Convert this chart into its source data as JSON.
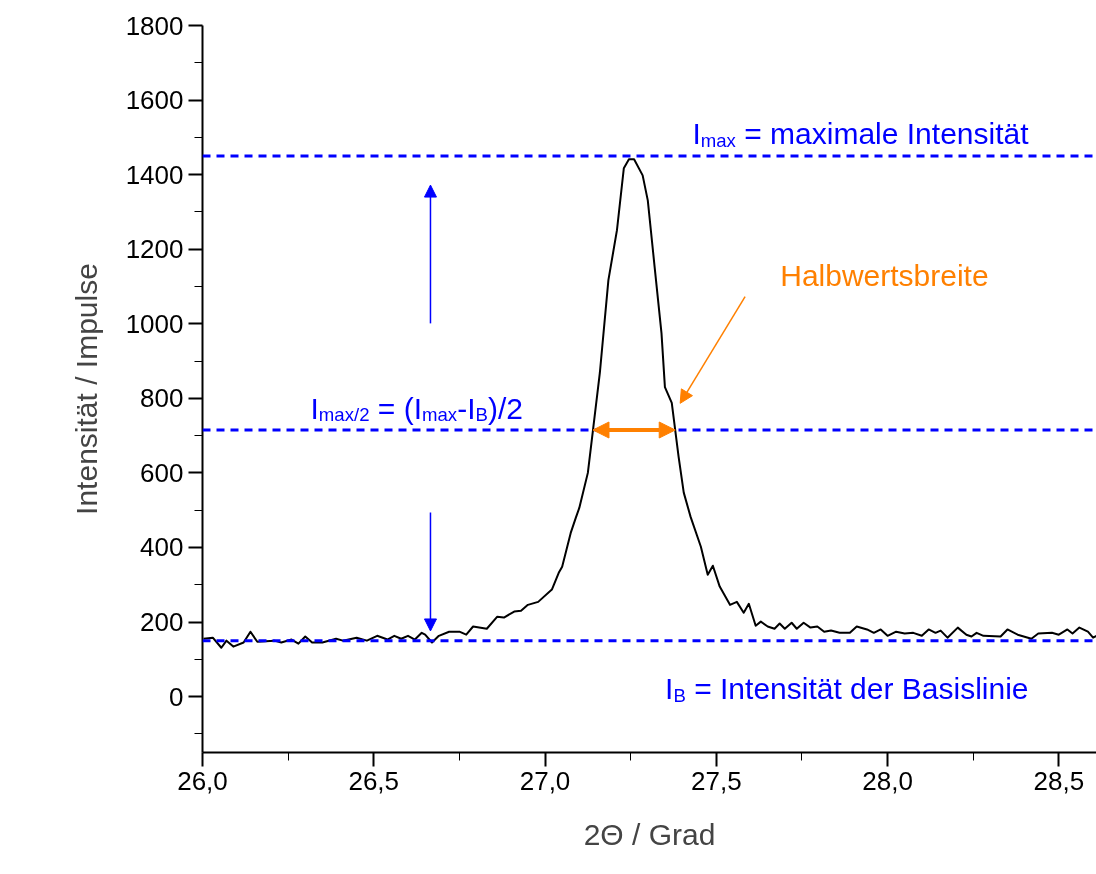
{
  "chart_data": {
    "type": "line",
    "xlabel": "2Θ / Grad",
    "ylabel": "Intensität / Impulse",
    "x": [
      26.003,
      26.03,
      26.055,
      26.07,
      26.09,
      26.12,
      26.14,
      26.16,
      26.21,
      26.23,
      26.26,
      26.28,
      26.3,
      26.32,
      26.35,
      26.39,
      26.41,
      26.45,
      26.48,
      26.51,
      26.54,
      26.56,
      26.58,
      26.6,
      26.62,
      26.64,
      26.65,
      26.67,
      26.69,
      26.72,
      26.75,
      26.77,
      26.79,
      26.83,
      26.86,
      26.88,
      26.91,
      26.93,
      26.95,
      26.98,
      27.02,
      27.04,
      27.05,
      27.075,
      27.09,
      27.1,
      27.125,
      27.14,
      27.16,
      27.185,
      27.21,
      27.23,
      27.245,
      27.26,
      27.285,
      27.3,
      27.32,
      27.34,
      27.35,
      27.37,
      27.39,
      27.405,
      27.425,
      27.455,
      27.475,
      27.49,
      27.51,
      27.54,
      27.56,
      27.58,
      27.595,
      27.615,
      27.63,
      27.65,
      27.67,
      27.685,
      27.7,
      27.72,
      27.735,
      27.755,
      27.775,
      27.795,
      27.815,
      27.835,
      27.86,
      27.89,
      27.91,
      27.94,
      27.96,
      27.98,
      28.0,
      28.025,
      28.05,
      28.075,
      28.1,
      28.12,
      28.14,
      28.155,
      28.175,
      28.205,
      28.23,
      28.245,
      28.26,
      28.28,
      28.33,
      28.35,
      28.38,
      28.42,
      28.44,
      28.48,
      28.5,
      28.525,
      28.54,
      28.56,
      28.585,
      28.6,
      28.61
    ],
    "series": [
      {
        "color": "#000000",
        "values": [
          155,
          158,
          131,
          150,
          134,
          145,
          174,
          147,
          150,
          145,
          153,
          142,
          161,
          145,
          145,
          155,
          150,
          158,
          150,
          163,
          153,
          163,
          155,
          163,
          153,
          171,
          166,
          145,
          163,
          174,
          174,
          166,
          188,
          182,
          214,
          212,
          228,
          230,
          246,
          254,
          287,
          332,
          348,
          439,
          480,
          506,
          600,
          715,
          868,
          1117,
          1251,
          1417,
          1441,
          1441,
          1398,
          1331,
          1152,
          975,
          830,
          788,
          643,
          547,
          482,
          402,
          327,
          351,
          295,
          246,
          254,
          225,
          249,
          190,
          201,
          188,
          182,
          196,
          182,
          198,
          182,
          198,
          185,
          188,
          174,
          177,
          171,
          171,
          188,
          180,
          171,
          180,
          163,
          174,
          169,
          171,
          163,
          180,
          171,
          177,
          158,
          185,
          166,
          161,
          171,
          163,
          161,
          180,
          166,
          155,
          169,
          171,
          166,
          180,
          169,
          185,
          174,
          158,
          163
        ]
      }
    ],
    "xlim": [
      26.0,
      28.61
    ],
    "ylim": [
      -150,
      1800
    ],
    "xticks": [
      {
        "value": 26.0,
        "label": "26,0"
      },
      {
        "value": 26.5,
        "label": "26,5"
      },
      {
        "value": 27.0,
        "label": "27,0"
      },
      {
        "value": 27.5,
        "label": "27,5"
      },
      {
        "value": 28.0,
        "label": "28,0"
      },
      {
        "value": 28.5,
        "label": "28,5"
      }
    ],
    "yticks": [
      0,
      200,
      400,
      600,
      800,
      1000,
      1200,
      1400,
      1600,
      1800
    ],
    "grid": false,
    "marker": "none",
    "line_style": "solid",
    "ref_lines": [
      {
        "axis": "y",
        "value": 1450,
        "label": "I$_{max}$ = maximale Intensität",
        "color": "#0000ff",
        "line_style": "dashed"
      },
      {
        "axis": "y",
        "value": 715,
        "label": "I$_{max/2}$ = (I$_{max}$-I$_{B}$)/2",
        "color": "#0000ff",
        "line_style": "dashed"
      },
      {
        "axis": "y",
        "value": 150,
        "label": "I$_{B}$ = Intensität der Basislinie",
        "color": "#0000ff",
        "line_style": "dashed"
      }
    ],
    "annotations": [
      "Halbwertsbreite"
    ]
  }
}
